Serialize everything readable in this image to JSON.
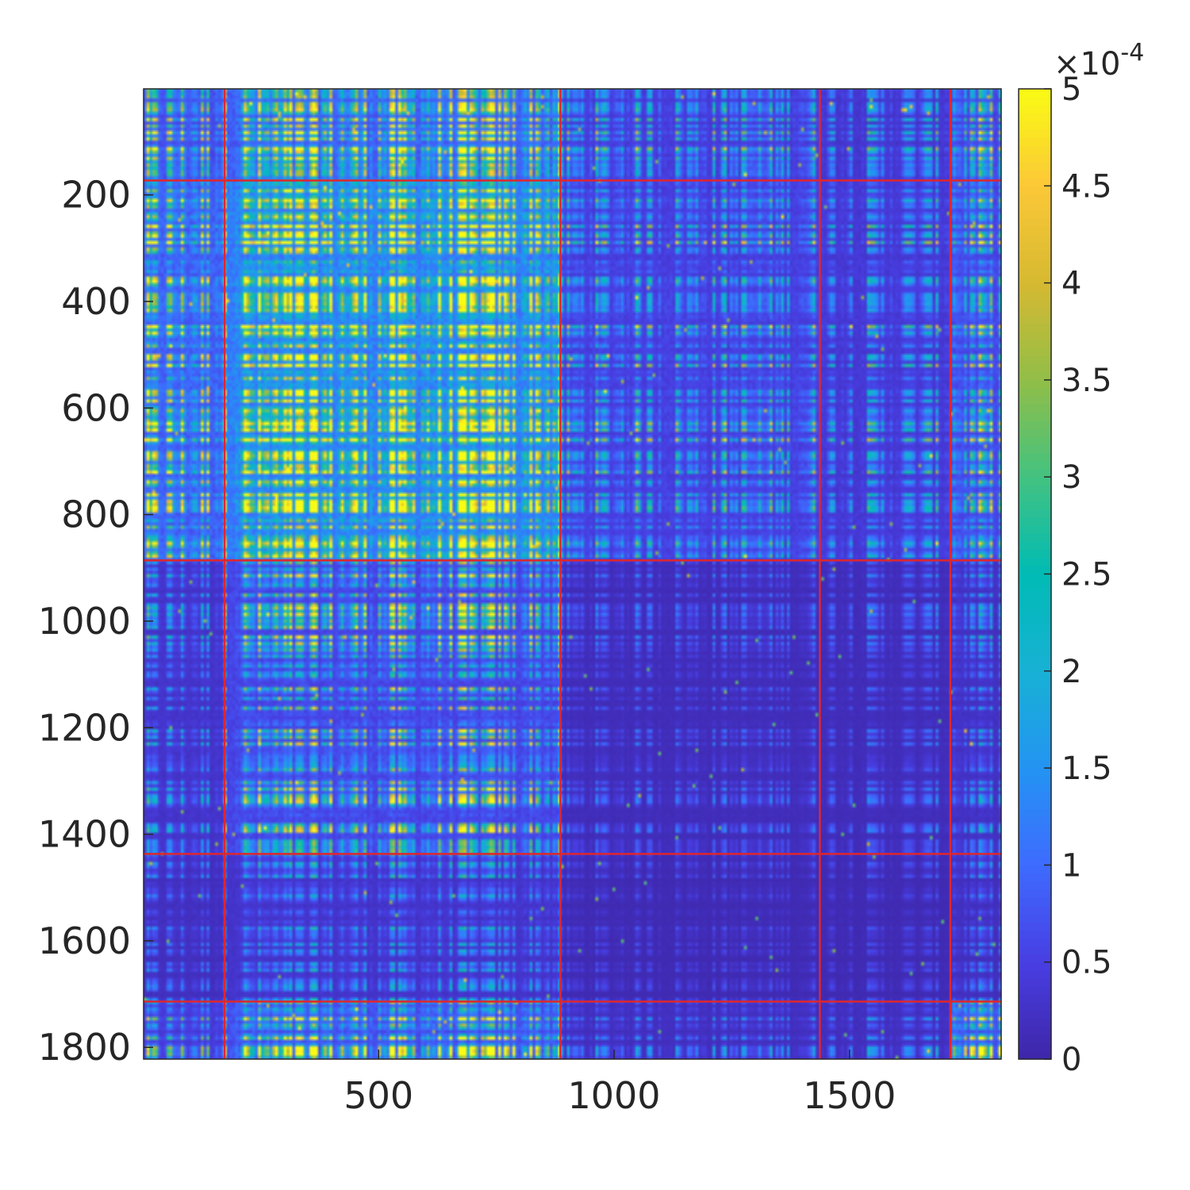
{
  "chart_data": {
    "type": "heatmap",
    "matrix_size": 1822,
    "xlim": [
      1,
      1822
    ],
    "ylim": [
      1,
      1822
    ],
    "y_reversed": true,
    "x_ticks": [
      {
        "value": 500,
        "label": "500"
      },
      {
        "value": 1000,
        "label": "1000"
      },
      {
        "value": 1500,
        "label": "1500"
      }
    ],
    "y_ticks": [
      {
        "value": 200,
        "label": "200"
      },
      {
        "value": 400,
        "label": "400"
      },
      {
        "value": 600,
        "label": "600"
      },
      {
        "value": 800,
        "label": "800"
      },
      {
        "value": 1000,
        "label": "1000"
      },
      {
        "value": 1200,
        "label": "1200"
      },
      {
        "value": 1400,
        "label": "1400"
      },
      {
        "value": 1600,
        "label": "1600"
      },
      {
        "value": 1800,
        "label": "1800"
      }
    ],
    "block_boundaries": [
      173,
      886,
      1437,
      1714
    ],
    "boundary_color": "#e0262c",
    "colormap": "parula",
    "colorbar": {
      "limits": [
        0,
        5
      ],
      "exponent_label": "×10",
      "exponent_power": "-4",
      "ticks": [
        {
          "value": 0,
          "label": "0"
        },
        {
          "value": 0.5,
          "label": "0.5"
        },
        {
          "value": 1,
          "label": "1"
        },
        {
          "value": 1.5,
          "label": "1.5"
        },
        {
          "value": 2,
          "label": "2"
        },
        {
          "value": 2.5,
          "label": "2.5"
        },
        {
          "value": 3,
          "label": "3"
        },
        {
          "value": 3.5,
          "label": "3.5"
        },
        {
          "value": 4,
          "label": "4"
        },
        {
          "value": 4.5,
          "label": "4.5"
        },
        {
          "value": 5,
          "label": "5"
        }
      ]
    },
    "block_mean_levels": {
      "description_units": "x10^-4",
      "rows": [
        [
          1.4,
          1.8,
          0.9,
          0.7,
          1.2
        ],
        [
          1.8,
          2.6,
          1.0,
          0.8,
          1.3
        ],
        [
          0.6,
          1.2,
          0.3,
          0.3,
          0.5
        ],
        [
          0.4,
          0.6,
          0.2,
          0.2,
          0.4
        ],
        [
          0.9,
          1.5,
          0.4,
          0.4,
          1.6
        ]
      ]
    },
    "grid": false,
    "legend": "colorbar-right"
  },
  "colors": {
    "background_level": "#3e26a8",
    "axis": "#262626"
  }
}
